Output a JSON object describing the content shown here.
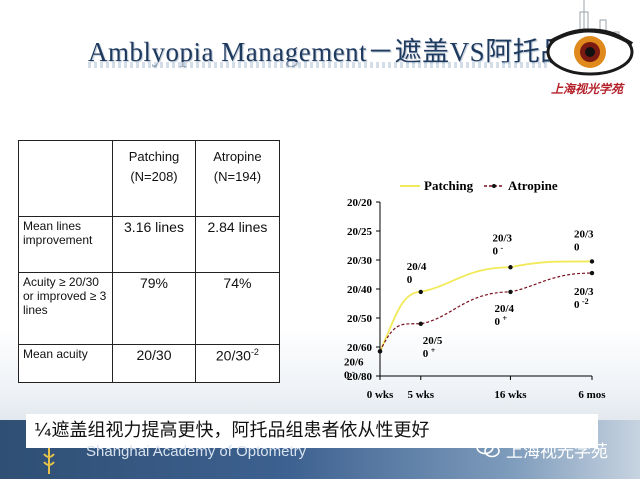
{
  "slide": {
    "title": "Amblyopia Management－遮盖VS阿托品",
    "logo_text": "上海视光学苑",
    "caption": "¼遮盖组视力提高更快，阿托品组患者依从性更好",
    "footer_text": "Shanghai Academy of Optometry",
    "watermark": "上海视光学苑"
  },
  "table": {
    "headers": [
      "",
      "Patching\n(N=208)",
      "Atropine\n(N=194)"
    ],
    "rows": [
      {
        "label": "Mean lines improvement",
        "patching": "3.16 lines",
        "atropine": "2.84 lines"
      },
      {
        "label": "Acuity ≥ 20/30 or improved ≥ 3 lines",
        "patching": "79%",
        "atropine": "74%"
      },
      {
        "label": "Mean acuity",
        "patching": "20/30",
        "atropine": "20/30",
        "atropine_sup": "-2"
      }
    ]
  },
  "chart_data": {
    "type": "line",
    "title": "",
    "xlabel": "",
    "ylabel": "",
    "x_ticks": [
      "0 wks",
      "5 wks",
      "16 wks",
      "6 mos"
    ],
    "x_weeks": [
      0,
      5,
      16,
      26
    ],
    "y_ticks": [
      "20/20",
      "20/25",
      "20/30",
      "20/40",
      "20/50",
      "20/60",
      "20/80"
    ],
    "series": [
      {
        "name": "Patching",
        "color": "#f2ea5a",
        "labels": [
          {
            "line1": "20/6",
            "line2": "0",
            "sup": "-"
          },
          {
            "line1": "20/4",
            "line2": "0",
            "sup": ""
          },
          {
            "line1": "20/3",
            "line2": "0",
            "sup": "-"
          },
          {
            "line1": "20/3",
            "line2": "0",
            "sup": ""
          }
        ]
      },
      {
        "name": "Atropine",
        "color": "#7a1020",
        "labels": [
          {
            "line1": "",
            "line2": "",
            "sup": ""
          },
          {
            "line1": "20/5",
            "line2": "0",
            "sup": "+"
          },
          {
            "line1": "20/4",
            "line2": "0",
            "sup": "+"
          },
          {
            "line1": "20/3",
            "line2": "0",
            "sup": "-2"
          }
        ]
      }
    ]
  }
}
